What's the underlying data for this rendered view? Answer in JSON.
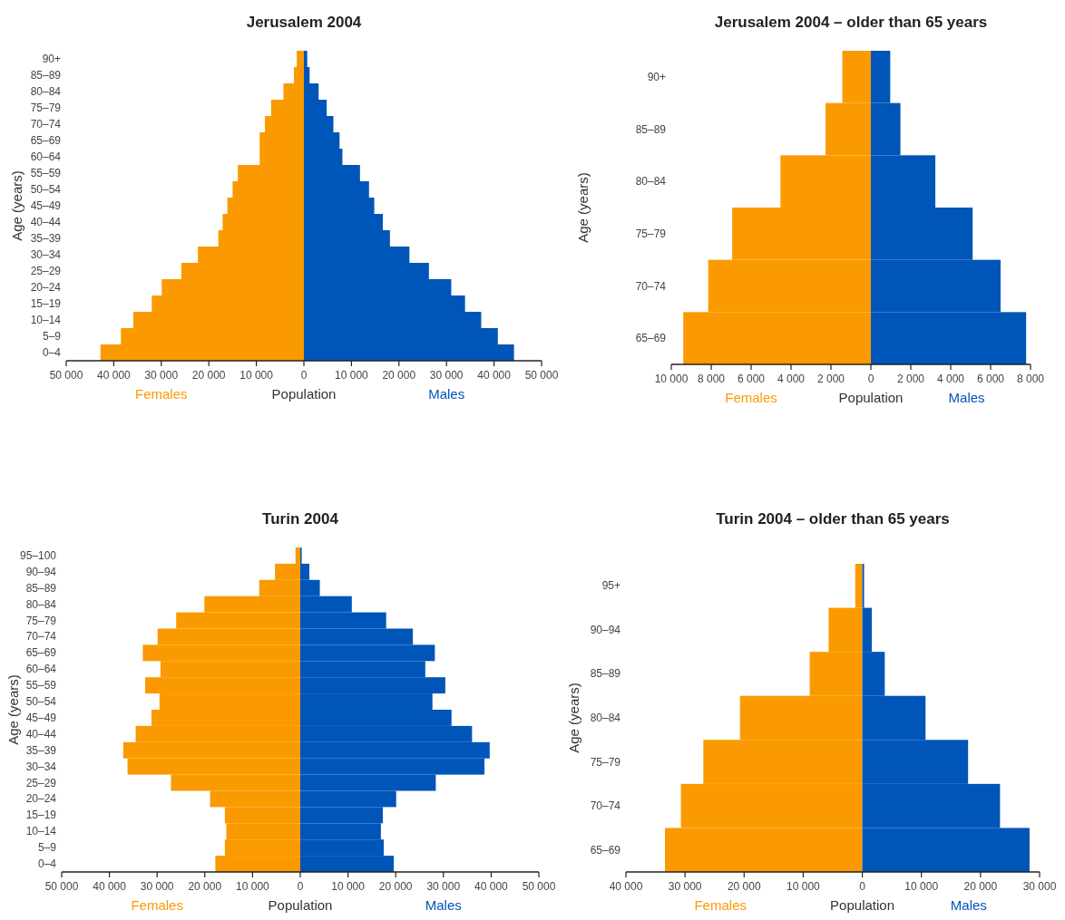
{
  "chart_data": [
    {
      "type": "bar",
      "orientation": "horizontal",
      "stacked": true,
      "title": "Jerusalem 2004",
      "xlabel": "Population",
      "ylabel": "Age (years)",
      "categories": [
        "90+",
        "85–89",
        "80–84",
        "75–79",
        "70–74",
        "65–69",
        "60–64",
        "55–59",
        "50–54",
        "45–49",
        "40–44",
        "35–39",
        "30–34",
        "25–29",
        "20–24",
        "15–19",
        "10–14",
        "5–9",
        "0–4"
      ],
      "xlim": [
        -50000,
        50000
      ],
      "xticks": [
        {
          "value": -50000,
          "label": "50 000"
        },
        {
          "value": -40000,
          "label": "40 000"
        },
        {
          "value": -30000,
          "label": "30 000"
        },
        {
          "value": -20000,
          "label": "20 000"
        },
        {
          "value": -10000,
          "label": "10 000"
        },
        {
          "value": 0,
          "label": "0"
        },
        {
          "value": 10000,
          "label": "10 000"
        },
        {
          "value": 20000,
          "label": "20 000"
        },
        {
          "value": 30000,
          "label": "30 000"
        },
        {
          "value": 40000,
          "label": "40 000"
        },
        {
          "value": 50000,
          "label": "50 000"
        }
      ],
      "series": [
        {
          "name": "Females",
          "color": "#fa9a00",
          "values": [
            -1500,
            -2100,
            -4300,
            -6900,
            -8200,
            -9300,
            -9300,
            -13900,
            -15000,
            -16100,
            -17100,
            -18000,
            -22300,
            -25800,
            -29900,
            -32000,
            -35900,
            -38500,
            -42800
          ]
        },
        {
          "name": "Males",
          "color": "#0055b8",
          "values": [
            700,
            1200,
            3100,
            4800,
            6200,
            7500,
            8100,
            11800,
            13700,
            14800,
            16600,
            18100,
            22200,
            26300,
            31000,
            33900,
            37300,
            40800,
            44200
          ]
        }
      ]
    },
    {
      "type": "bar",
      "orientation": "horizontal",
      "stacked": true,
      "title": "Jerusalem 2004 – older than 65 years",
      "xlabel": "Population",
      "ylabel": "Age (years)",
      "categories": [
        "90+",
        "85–89",
        "80–84",
        "75–79",
        "70–74",
        "65–69"
      ],
      "xlim": [
        -10000,
        8000
      ],
      "xticks": [
        {
          "value": -10000,
          "label": "10 000"
        },
        {
          "value": -8000,
          "label": "8 000"
        },
        {
          "value": -6000,
          "label": "6 000"
        },
        {
          "value": -4000,
          "label": "4 000"
        },
        {
          "value": -2000,
          "label": "2 000"
        },
        {
          "value": 0,
          "label": "0"
        },
        {
          "value": 2000,
          "label": "2 000"
        },
        {
          "value": 4000,
          "label": "4 000"
        },
        {
          "value": 6000,
          "label": "6 000"
        },
        {
          "value": 8000,
          "label": "8 000"
        }
      ],
      "series": [
        {
          "name": "Females",
          "color": "#fa9a00",
          "values": [
            -1430,
            -2270,
            -4530,
            -6950,
            -8150,
            -9400
          ]
        },
        {
          "name": "Males",
          "color": "#0055b8",
          "values": [
            970,
            1480,
            3230,
            5100,
            6500,
            7780
          ]
        }
      ]
    },
    {
      "type": "bar",
      "orientation": "horizontal",
      "stacked": true,
      "title": "Turin 2004",
      "xlabel": "Population",
      "ylabel": "Age (years)",
      "categories": [
        "95–100",
        "90–94",
        "85–89",
        "80–84",
        "75–79",
        "70–74",
        "65–69",
        "60–64",
        "55–59",
        "50–54",
        "45–49",
        "40–44",
        "35–39",
        "30–34",
        "25–29",
        "20–24",
        "15–19",
        "10–14",
        "5–9",
        "0–4"
      ],
      "xlim": [
        -50000,
        50000
      ],
      "xticks": [
        {
          "value": -50000,
          "label": "50 000"
        },
        {
          "value": -40000,
          "label": "40 000"
        },
        {
          "value": -30000,
          "label": "30 000"
        },
        {
          "value": -20000,
          "label": "20 000"
        },
        {
          "value": -10000,
          "label": "10 000"
        },
        {
          "value": 0,
          "label": "0"
        },
        {
          "value": 10000,
          "label": "10 000"
        },
        {
          "value": 20000,
          "label": "20 000"
        },
        {
          "value": 30000,
          "label": "30 000"
        },
        {
          "value": 40000,
          "label": "40 000"
        },
        {
          "value": 50000,
          "label": "50 000"
        }
      ],
      "series": [
        {
          "name": "Females",
          "color": "#fa9a00",
          "values": [
            -1000,
            -5300,
            -8600,
            -20100,
            -26000,
            -29900,
            -33000,
            -29300,
            -32500,
            -29500,
            -31200,
            -34500,
            -37100,
            -36200,
            -27100,
            -18900,
            -15800,
            -15500,
            -15800,
            -17800
          ]
        },
        {
          "name": "Males",
          "color": "#0055b8",
          "values": [
            300,
            1900,
            4100,
            10800,
            18000,
            23600,
            28200,
            26200,
            30400,
            27700,
            31700,
            36000,
            39700,
            38600,
            28400,
            20100,
            17300,
            16900,
            17500,
            19600
          ]
        }
      ]
    },
    {
      "type": "bar",
      "orientation": "horizontal",
      "stacked": true,
      "title": "Turin 2004 – older than 65 years",
      "xlabel": "Population",
      "ylabel": "Age (years)",
      "categories": [
        "95+",
        "90–94",
        "85–89",
        "80–84",
        "75–79",
        "70–74",
        "65–69"
      ],
      "xlim": [
        -40000,
        30000
      ],
      "xticks": [
        {
          "value": -40000,
          "label": "40 000"
        },
        {
          "value": -30000,
          "label": "30 000"
        },
        {
          "value": -20000,
          "label": "20 000"
        },
        {
          "value": -10000,
          "label": "10 000"
        },
        {
          "value": 0,
          "label": "0"
        },
        {
          "value": 10000,
          "label": "10 000"
        },
        {
          "value": 20000,
          "label": "20 000"
        },
        {
          "value": 30000,
          "label": "30 000"
        }
      ],
      "series": [
        {
          "name": "Females",
          "color": "#fa9a00",
          "values": [
            -1200,
            -5700,
            -8900,
            -20700,
            -26900,
            -30700,
            -33400
          ]
        },
        {
          "name": "Males",
          "color": "#0055b8",
          "values": [
            300,
            1600,
            3800,
            10700,
            17900,
            23300,
            28300
          ]
        }
      ]
    }
  ]
}
